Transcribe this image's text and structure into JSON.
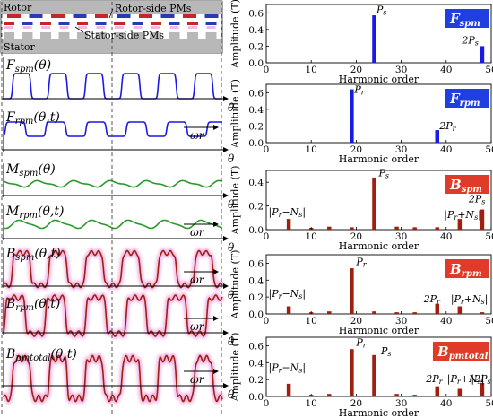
{
  "colors": {
    "spm": "#1a1ae6",
    "rpm": "#1a1ae6",
    "modulation": "#2a9a2a",
    "flux": "#a02010",
    "badge_blue": "#1f3fe0",
    "badge_red": "#e03a28",
    "glow": "#f2b8e6",
    "pm_red": "#c0282a",
    "pm_blue": "#2a3ab0",
    "machine_gray": "#b8b8b8"
  },
  "machine": {
    "rotor_label": "Rotor",
    "stator_label": "Stator",
    "rotor_pm_label": "Rotor-side PMs",
    "stator_pm_label": "Stator-side PMs"
  },
  "waveforms": [
    {
      "id": "fspm",
      "label": "F",
      "sub": "spm",
      "args": "(θ)",
      "axis": "θ",
      "speed": ""
    },
    {
      "id": "frpm",
      "label": "F",
      "sub": "rpm",
      "args": "(θ,t)",
      "axis": "θ",
      "speed": "ωr"
    },
    {
      "id": "mspm",
      "label": "M",
      "sub": "spm",
      "args": "(θ)",
      "axis": "θ",
      "speed": ""
    },
    {
      "id": "mrpm",
      "label": "M",
      "sub": "rpm",
      "args": "(θ,t)",
      "axis": "θ",
      "speed": "ωr"
    },
    {
      "id": "bspm",
      "label": "B",
      "sub": "spm",
      "args": "(θ,t)",
      "axis": "θ",
      "speed": "ωr"
    },
    {
      "id": "brpm",
      "label": "B",
      "sub": "rpm",
      "args": "(θ,t)",
      "axis": "θ",
      "speed": "ωr"
    },
    {
      "id": "bpmtotal",
      "label": "B",
      "sub": "pmtotal",
      "args": "(θ,t)",
      "axis": "θ",
      "speed": "ωr"
    }
  ],
  "chart_data": [
    {
      "type": "bar",
      "badge": {
        "main": "F",
        "sub": "spm"
      },
      "xlabel": "Harmonic order",
      "ylabel": "Amplitude (T)",
      "xlim": [
        0,
        50
      ],
      "ylim": [
        0,
        0.7
      ],
      "xticks": [
        0,
        10,
        20,
        30,
        40,
        50
      ],
      "yticks": [
        0,
        0.2,
        0.4,
        0.6
      ],
      "color": "#1a1ae6",
      "x": [
        24,
        48
      ],
      "values": [
        0.57,
        0.2
      ],
      "annotations": [
        {
          "text": "P",
          "sub": "s",
          "x": 24.5,
          "y": 0.6
        },
        {
          "text": "2P",
          "sub": "s",
          "x": 43.5,
          "y": 0.23
        }
      ]
    },
    {
      "type": "bar",
      "badge": {
        "main": "F",
        "sub": "rpm"
      },
      "xlabel": "Harmonic order",
      "ylabel": "Amplitude (T)",
      "xlim": [
        0,
        50
      ],
      "ylim": [
        0,
        0.7
      ],
      "xticks": [
        0,
        10,
        20,
        30,
        40,
        50
      ],
      "yticks": [
        0,
        0.2,
        0.4,
        0.6
      ],
      "color": "#1a1ae6",
      "x": [
        19,
        38
      ],
      "values": [
        0.64,
        0.15
      ],
      "annotations": [
        {
          "text": "P",
          "sub": "r",
          "x": 19.6,
          "y": 0.6
        },
        {
          "text": "2P",
          "sub": "r",
          "x": 38.5,
          "y": 0.16
        }
      ]
    },
    {
      "type": "bar",
      "badge": {
        "main": "B",
        "sub": "spm"
      },
      "xlabel": "Harmonic order",
      "ylabel": "Amplitude (T)",
      "xlim": [
        0,
        50
      ],
      "ylim": [
        0,
        0.5
      ],
      "xticks": [
        0,
        10,
        20,
        30,
        40,
        50
      ],
      "yticks": [
        0,
        0.2,
        0.4
      ],
      "color": "#a02010",
      "x": [
        5,
        10,
        14,
        19,
        24,
        29,
        33,
        38,
        43,
        48
      ],
      "values": [
        0.09,
        0.015,
        0.025,
        0.02,
        0.44,
        0.025,
        0.02,
        0.02,
        0.09,
        0.17
      ],
      "annotations": [
        {
          "text": "|P",
          "sub": "r",
          "rest": "−N",
          "sub2": "s",
          "tail": "|",
          "x": 0.5,
          "y": 0.12
        },
        {
          "text": "P",
          "sub": "s",
          "x": 25,
          "y": 0.45
        },
        {
          "text": "|P",
          "sub": "r",
          "rest": "+N",
          "sub2": "s",
          "tail": "|",
          "x": 39.5,
          "y": 0.1
        },
        {
          "text": "2P",
          "sub": "s",
          "x": 45,
          "y": 0.23
        }
      ]
    },
    {
      "type": "bar",
      "badge": {
        "main": "B",
        "sub": "rpm"
      },
      "xlabel": "Harmonic order",
      "ylabel": "Amplitude (T)",
      "xlim": [
        0,
        50
      ],
      "ylim": [
        0,
        0.7
      ],
      "xticks": [
        0,
        10,
        20,
        30,
        40,
        50
      ],
      "yticks": [
        0,
        0.2,
        0.4,
        0.6
      ],
      "color": "#a02010",
      "x": [
        5,
        10,
        14,
        19,
        24,
        29,
        33,
        38,
        43,
        48
      ],
      "values": [
        0.09,
        0.02,
        0.03,
        0.54,
        0.03,
        0.02,
        0.02,
        0.12,
        0.09,
        0.02
      ],
      "annotations": [
        {
          "text": "|P",
          "sub": "r",
          "rest": "−N",
          "sub2": "s",
          "tail": "|",
          "x": 0.5,
          "y": 0.2
        },
        {
          "text": "P",
          "sub": "r",
          "x": 20,
          "y": 0.58
        },
        {
          "text": "2P",
          "sub": "r",
          "x": 35,
          "y": 0.14
        },
        {
          "text": "|P",
          "sub": "r",
          "rest": "+N",
          "sub2": "s",
          "tail": "|",
          "x": 41,
          "y": 0.14
        }
      ]
    },
    {
      "type": "bar",
      "badge": {
        "main": "B",
        "sub": "pmtotal"
      },
      "xlabel": "Harmonic order",
      "ylabel": "Amplitude (T)",
      "xlim": [
        0,
        50
      ],
      "ylim": [
        0,
        0.7
      ],
      "xticks": [
        0,
        10,
        20,
        30,
        40,
        50
      ],
      "yticks": [
        0,
        0.2,
        0.4,
        0.6
      ],
      "color": "#a02010",
      "x": [
        5,
        10,
        14,
        19,
        24,
        29,
        33,
        38,
        43,
        48
      ],
      "values": [
        0.15,
        0.02,
        0.03,
        0.56,
        0.49,
        0.03,
        0.02,
        0.12,
        0.09,
        0.16
      ],
      "annotations": [
        {
          "text": "|P",
          "sub": "r",
          "rest": "−N",
          "sub2": "s",
          "tail": "|",
          "x": 0.5,
          "y": 0.3
        },
        {
          "text": "P",
          "sub": "r",
          "x": 20,
          "y": 0.6
        },
        {
          "text": "P",
          "sub": "s",
          "x": 25.5,
          "y": 0.5
        },
        {
          "text": "2P",
          "sub": "r",
          "x": 35.5,
          "y": 0.17
        },
        {
          "text": "|P",
          "sub": "r",
          "rest": "+N",
          "sub2": "s",
          "tail": "|",
          "x": 40.2,
          "y": 0.17
        },
        {
          "text": "|2P",
          "sub": "s",
          "x": 45.5,
          "y": 0.17
        }
      ]
    }
  ]
}
